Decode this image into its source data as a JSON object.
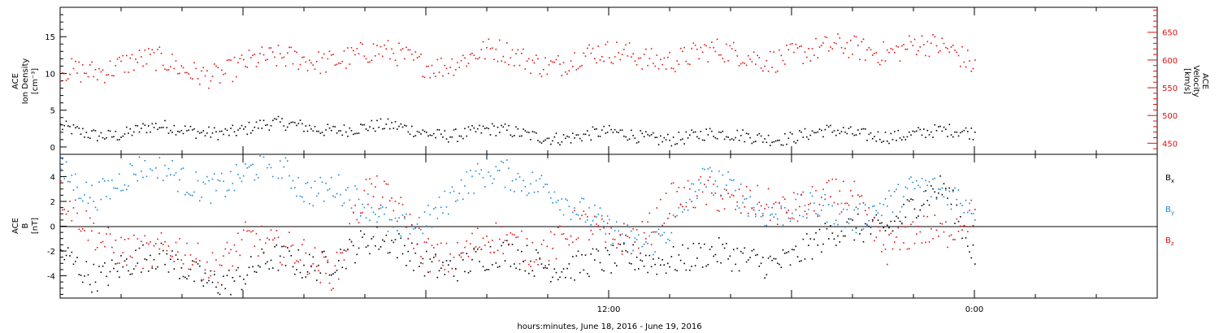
{
  "xlabel": "hours:minutes, June 18, 2016 - June 19, 2016",
  "x_ticks": [
    {
      "label": "12:00",
      "hour": 12
    },
    {
      "label": "0:00",
      "hour": 24
    }
  ],
  "top_panel": {
    "ylabel_left": [
      "ACE",
      "Ion Density",
      "[cm⁻³]"
    ],
    "ylabel_right": [
      "ACE",
      "Velocity",
      "[km/s]"
    ]
  },
  "bottom_panel": {
    "ylabel": [
      "ACE",
      "B",
      "[nT]"
    ],
    "legend": [
      {
        "label": "B",
        "sub": "x",
        "color": "#000000"
      },
      {
        "label": "B",
        "sub": "y",
        "color": "#1a87d6"
      },
      {
        "label": "B",
        "sub": "z",
        "color": "#e01010"
      }
    ]
  },
  "colors": {
    "density": "#000000",
    "velocity": "#e01010",
    "bx": "#000000",
    "by": "#1a87d6",
    "bz": "#e01010",
    "axis": "#000000"
  },
  "chart_data": [
    {
      "type": "scatter",
      "panel": "top",
      "x_unit": "hours since 2016-06-18 00:00 UT",
      "xlim": [
        -6,
        30
      ],
      "ylim": [
        -1,
        19
      ],
      "ylabel": "ACE Ion Density [cm⁻³]",
      "yticks": [
        0,
        5,
        10,
        15
      ],
      "series": [
        {
          "color": "#000000",
          "x": [
            -6,
            -5,
            -4,
            -3,
            -2,
            -1,
            0,
            1,
            2,
            3,
            4,
            5,
            6,
            7,
            8,
            9,
            10,
            11,
            12,
            13,
            14,
            15,
            16,
            17,
            18,
            19,
            20,
            21,
            22,
            23,
            24
          ],
          "y": [
            2.5,
            2.2,
            2.0,
            2.4,
            2.3,
            2.5,
            2.4,
            2.8,
            3.0,
            2.8,
            2.5,
            2.5,
            2.3,
            2.0,
            2.0,
            1.8,
            1.8,
            1.6,
            1.6,
            1.5,
            1.6,
            1.6,
            1.3,
            1.6,
            1.7,
            1.9,
            1.6,
            2.0,
            2.0,
            1.8,
            1.9
          ]
        },
        {
          "color": "#e01010",
          "x": [
            -6,
            -5,
            -4,
            -3,
            -2,
            -1,
            0,
            1,
            2,
            3,
            4,
            5,
            6,
            7,
            8,
            9,
            10,
            11,
            12,
            13,
            14,
            15,
            16,
            17,
            18,
            19,
            20,
            21,
            22,
            23,
            24
          ],
          "y_secondary": [
            575,
            590,
            600,
            592,
            580,
            585,
            595,
            592,
            605,
            612,
            608,
            602,
            600,
            605,
            608,
            602,
            602,
            610,
            602,
            608,
            612,
            612,
            603,
            608,
            620,
            612,
            617,
            625,
            635,
            610,
            588
          ],
          "y_secondary_axis": {
            "label": "ACE Velocity [km/s]",
            "ylim": [
              430,
              695
            ],
            "yticks": [
              450,
              500,
              550,
              600,
              650
            ]
          }
        }
      ]
    },
    {
      "type": "scatter",
      "panel": "bottom",
      "x_unit": "hours since 2016-06-18 00:00 UT",
      "xlim": [
        -6,
        30
      ],
      "ylim": [
        -5.8,
        5.8
      ],
      "ylabel": "ACE B [nT]",
      "yticks": [
        -4,
        -2,
        0,
        2,
        4
      ],
      "series": [
        {
          "name": "Bx",
          "color": "#000000",
          "x": [
            -6,
            -5,
            -4,
            -3,
            -2,
            -1,
            0,
            1,
            2,
            3,
            4,
            5,
            6,
            7,
            8,
            9,
            10,
            11,
            12,
            13,
            14,
            15,
            16,
            17,
            18,
            19,
            20,
            21,
            22,
            23,
            24
          ],
          "y": [
            -2.5,
            -3.5,
            -2.8,
            -3.0,
            -3.5,
            -3.8,
            -4.0,
            -3.2,
            -3.0,
            -2.0,
            -1.5,
            -2.0,
            -2.5,
            -2.8,
            -3.0,
            -2.5,
            -2.5,
            -3.0,
            -3.5,
            -2.5,
            -2.0,
            -2.5,
            -3.0,
            -2.5,
            -2.0,
            -1.5,
            -0.5,
            0.5,
            2.0,
            2.5,
            -2.5
          ]
        },
        {
          "name": "By",
          "color": "#1a87d6",
          "x": [
            -6,
            -5,
            -4,
            -3,
            -2,
            -1,
            0,
            1,
            2,
            3,
            4,
            5,
            6,
            7,
            8,
            9,
            10,
            11,
            12,
            13,
            14,
            15,
            16,
            17,
            18,
            19,
            20,
            21,
            22,
            23,
            24
          ],
          "y": [
            4.0,
            3.0,
            4.2,
            4.5,
            3.5,
            3.8,
            4.2,
            4.5,
            3.0,
            4.0,
            1.5,
            -1.0,
            1.0,
            3.5,
            3.8,
            3.5,
            4.0,
            1.5,
            -1.0,
            -1.5,
            0.5,
            3.5,
            2.5,
            1.5,
            2.0,
            1.0,
            0.0,
            2.5,
            3.5,
            2.0,
            1.5
          ]
        },
        {
          "name": "Bz",
          "color": "#e01010",
          "x": [
            -6,
            -5,
            -4,
            -3,
            -2,
            -1,
            0,
            1,
            2,
            3,
            4,
            5,
            6,
            7,
            8,
            9,
            10,
            11,
            12,
            13,
            14,
            15,
            16,
            17,
            18,
            19,
            20,
            21,
            22,
            23,
            24
          ],
          "y": [
            2.0,
            0.5,
            -1.5,
            -3.0,
            -2.0,
            -2.5,
            -1.0,
            -2.5,
            -2.0,
            -3.0,
            2.5,
            1.0,
            -1.5,
            -2.0,
            -1.5,
            -2.0,
            -1.0,
            0.5,
            -2.0,
            -1.0,
            3.0,
            2.5,
            1.0,
            2.5,
            2.0,
            1.5,
            2.0,
            -1.0,
            0.0,
            -1.5,
            1.0
          ]
        }
      ]
    }
  ]
}
